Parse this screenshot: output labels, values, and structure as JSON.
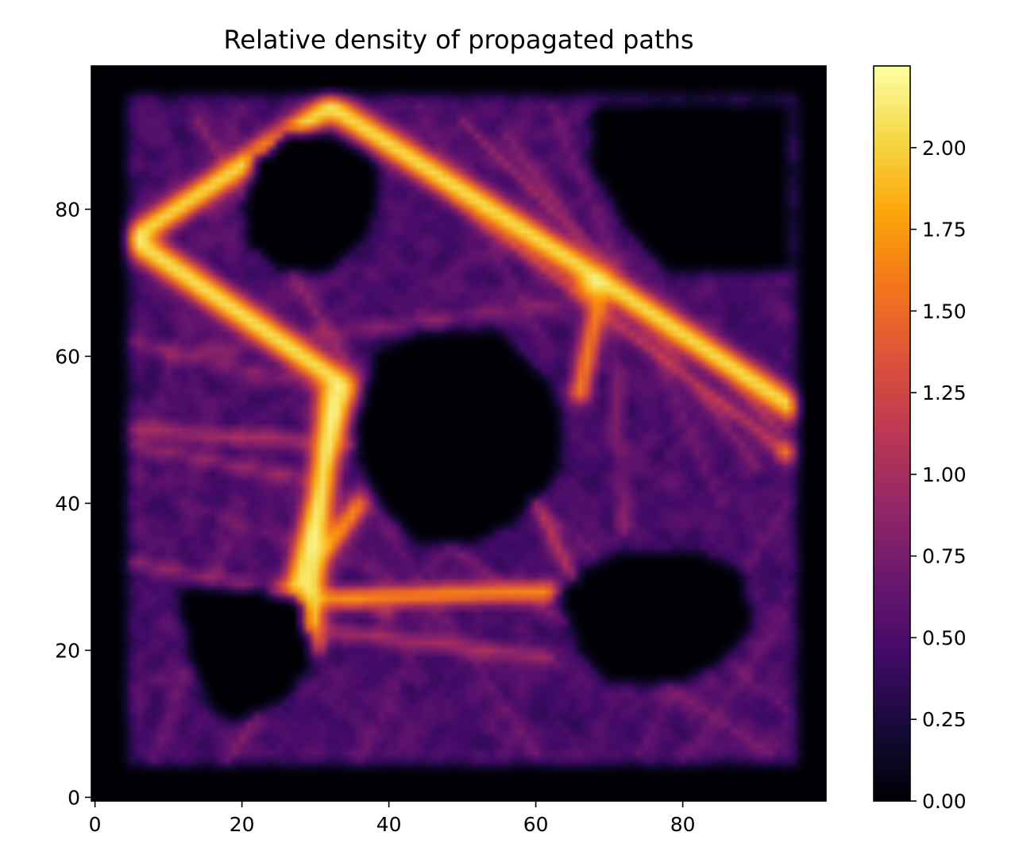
{
  "chart_data": {
    "type": "heatmap",
    "title": "Relative density of propagated paths",
    "xlabel": "",
    "ylabel": "",
    "xlim": [
      -0.5,
      99.5
    ],
    "ylim": [
      -0.5,
      99.5
    ],
    "x_ticks": [
      0,
      20,
      40,
      60,
      80
    ],
    "x_tick_labels": [
      "0",
      "20",
      "40",
      "60",
      "80"
    ],
    "y_ticks": [
      0,
      20,
      40,
      60,
      80
    ],
    "y_tick_labels": [
      "0",
      "20",
      "40",
      "60",
      "80"
    ],
    "grid": false,
    "colormap": "inferno",
    "colorbar": {
      "min": 0.0,
      "max": 2.25,
      "ticks": [
        0.0,
        0.25,
        0.5,
        0.75,
        1.0,
        1.25,
        1.5,
        1.75,
        2.0
      ],
      "tick_labels": [
        "0.00",
        "0.25",
        "0.50",
        "0.75",
        "1.00",
        "1.25",
        "1.50",
        "1.75",
        "2.00"
      ]
    },
    "domain_box": {
      "x": [
        5,
        95
      ],
      "y": [
        5,
        95
      ],
      "background_value": 0.55
    },
    "obstacles": [
      {
        "name": "top-left",
        "points": [
          [
            20,
            80
          ],
          [
            22,
            87
          ],
          [
            27,
            91
          ],
          [
            33,
            90
          ],
          [
            38,
            87
          ],
          [
            39,
            82
          ],
          [
            37,
            76
          ],
          [
            32,
            71
          ],
          [
            25,
            72
          ],
          [
            21,
            75
          ]
        ]
      },
      {
        "name": "center",
        "points": [
          [
            36,
            52
          ],
          [
            38,
            60
          ],
          [
            45,
            64
          ],
          [
            55,
            64
          ],
          [
            60,
            59
          ],
          [
            64,
            52
          ],
          [
            63,
            44
          ],
          [
            58,
            38
          ],
          [
            51,
            34
          ],
          [
            44,
            35
          ],
          [
            39,
            40
          ],
          [
            36,
            46
          ]
        ]
      },
      {
        "name": "top-right",
        "points": [
          [
            69,
            95
          ],
          [
            95,
            95
          ],
          [
            95,
            72
          ],
          [
            85,
            71
          ],
          [
            78,
            72
          ],
          [
            72,
            78
          ],
          [
            68,
            85
          ],
          [
            67,
            92
          ]
        ]
      },
      {
        "name": "bottom-left",
        "points": [
          [
            11,
            28
          ],
          [
            13,
            19
          ],
          [
            16,
            12
          ],
          [
            20,
            10
          ],
          [
            26,
            13
          ],
          [
            30,
            19
          ],
          [
            28,
            27
          ],
          [
            20,
            29
          ],
          [
            14,
            29
          ]
        ]
      },
      {
        "name": "bottom-right",
        "points": [
          [
            63,
            27
          ],
          [
            66,
            20
          ],
          [
            70,
            16
          ],
          [
            78,
            15
          ],
          [
            85,
            18
          ],
          [
            90,
            23
          ],
          [
            88,
            31
          ],
          [
            82,
            34
          ],
          [
            73,
            34
          ],
          [
            66,
            31
          ]
        ]
      }
    ],
    "paths": [
      {
        "points": [
          [
            5,
            76
          ],
          [
            32,
            94
          ]
        ],
        "value": 2.25,
        "width": 1.4
      },
      {
        "points": [
          [
            5,
            76
          ],
          [
            34,
            56
          ]
        ],
        "value": 2.25,
        "width": 1.6
      },
      {
        "points": [
          [
            32,
            94
          ],
          [
            68,
            71
          ]
        ],
        "value": 2.25,
        "width": 1.5
      },
      {
        "points": [
          [
            68,
            71
          ],
          [
            95,
            53
          ]
        ],
        "value": 2.25,
        "width": 1.5
      },
      {
        "points": [
          [
            34,
            56
          ],
          [
            27,
            27
          ]
        ],
        "value": 2.25,
        "width": 1.3
      },
      {
        "points": [
          [
            27,
            27
          ],
          [
            36,
            40
          ]
        ],
        "value": 2.0,
        "width": 1.0
      },
      {
        "points": [
          [
            29,
            21
          ],
          [
            32,
            55
          ]
        ],
        "value": 2.25,
        "width": 1.4
      },
      {
        "points": [
          [
            28,
            27
          ],
          [
            62,
            28
          ]
        ],
        "value": 2.1,
        "width": 0.9
      },
      {
        "points": [
          [
            66,
            55
          ],
          [
            69,
            70
          ]
        ],
        "value": 2.0,
        "width": 0.9
      },
      {
        "points": [
          [
            29,
            23
          ],
          [
            62,
            19
          ]
        ],
        "value": 1.5,
        "width": 0.5
      },
      {
        "points": [
          [
            5,
            50
          ],
          [
            36,
            48
          ]
        ],
        "value": 1.5,
        "width": 0.5
      },
      {
        "points": [
          [
            5,
            32
          ],
          [
            40,
            25
          ]
        ],
        "value": 1.4,
        "width": 0.4
      },
      {
        "points": [
          [
            5,
            48
          ],
          [
            30,
            43
          ]
        ],
        "value": 1.4,
        "width": 0.4
      },
      {
        "points": [
          [
            18,
            5
          ],
          [
            29,
            22
          ]
        ],
        "value": 1.2,
        "width": 0.4
      },
      {
        "points": [
          [
            40,
            88
          ],
          [
            94,
            47
          ]
        ],
        "value": 1.6,
        "width": 0.5
      },
      {
        "points": [
          [
            50,
            92
          ],
          [
            93,
            50
          ]
        ],
        "value": 1.3,
        "width": 0.4
      },
      {
        "points": [
          [
            56,
            90
          ],
          [
            90,
            45
          ]
        ],
        "value": 1.2,
        "width": 0.4
      },
      {
        "points": [
          [
            62,
            94
          ],
          [
            85,
            40
          ]
        ],
        "value": 1.1,
        "width": 0.3
      },
      {
        "points": [
          [
            14,
            92
          ],
          [
            35,
            58
          ]
        ],
        "value": 1.3,
        "width": 0.4
      },
      {
        "points": [
          [
            10,
            60
          ],
          [
            68,
            68
          ]
        ],
        "value": 1.2,
        "width": 0.4
      },
      {
        "points": [
          [
            5,
            62
          ],
          [
            30,
            56
          ]
        ],
        "value": 1.2,
        "width": 0.4
      },
      {
        "points": [
          [
            70,
            70
          ],
          [
            72,
            36
          ]
        ],
        "value": 1.2,
        "width": 0.4
      },
      {
        "points": [
          [
            42,
            38
          ],
          [
            92,
            6
          ]
        ],
        "value": 1.1,
        "width": 0.4
      },
      {
        "points": [
          [
            36,
            42
          ],
          [
            60,
            6
          ]
        ],
        "value": 1.0,
        "width": 0.3
      },
      {
        "points": [
          [
            62,
            38
          ],
          [
            94,
            12
          ]
        ],
        "value": 1.0,
        "width": 0.3
      },
      {
        "points": [
          [
            74,
            6
          ],
          [
            94,
            40
          ]
        ],
        "value": 1.0,
        "width": 0.3
      },
      {
        "points": [
          [
            5,
            15
          ],
          [
            30,
            22
          ]
        ],
        "value": 1.0,
        "width": 0.3
      },
      {
        "points": [
          [
            12,
            40
          ],
          [
            40,
            30
          ]
        ],
        "value": 1.0,
        "width": 0.3
      },
      {
        "points": [
          [
            5,
            40
          ],
          [
            20,
            94
          ]
        ],
        "value": 0.9,
        "width": 0.3
      },
      {
        "points": [
          [
            60,
            40
          ],
          [
            66,
            28
          ]
        ],
        "value": 1.6,
        "width": 0.5
      },
      {
        "points": [
          [
            44,
            94
          ],
          [
            60,
            64
          ]
        ],
        "value": 1.0,
        "width": 0.3
      },
      {
        "points": [
          [
            8,
            5
          ],
          [
            20,
            40
          ]
        ],
        "value": 1.0,
        "width": 0.3
      },
      {
        "points": [
          [
            36,
            5
          ],
          [
            50,
            33
          ]
        ],
        "value": 1.0,
        "width": 0.3
      },
      {
        "points": [
          [
            80,
            5
          ],
          [
            94,
            25
          ]
        ],
        "value": 0.9,
        "width": 0.3
      }
    ],
    "hotspots": [
      {
        "x": 68,
        "y": 70,
        "value": 2.25,
        "radius": 2.6
      },
      {
        "x": 27,
        "y": 27,
        "value": 2.25,
        "radius": 2.4
      },
      {
        "x": 33,
        "y": 56,
        "value": 2.25,
        "radius": 2.0
      },
      {
        "x": 5,
        "y": 76,
        "value": 2.25,
        "radius": 1.3
      },
      {
        "x": 32,
        "y": 94,
        "value": 2.25,
        "radius": 1.3
      },
      {
        "x": 94,
        "y": 47,
        "value": 2.1,
        "radius": 1.2
      },
      {
        "x": 95,
        "y": 53,
        "value": 2.1,
        "radius": 1.0
      },
      {
        "x": 30,
        "y": 21,
        "value": 2.0,
        "radius": 1.2
      },
      {
        "x": 66,
        "y": 55,
        "value": 2.0,
        "radius": 1.2
      }
    ]
  }
}
